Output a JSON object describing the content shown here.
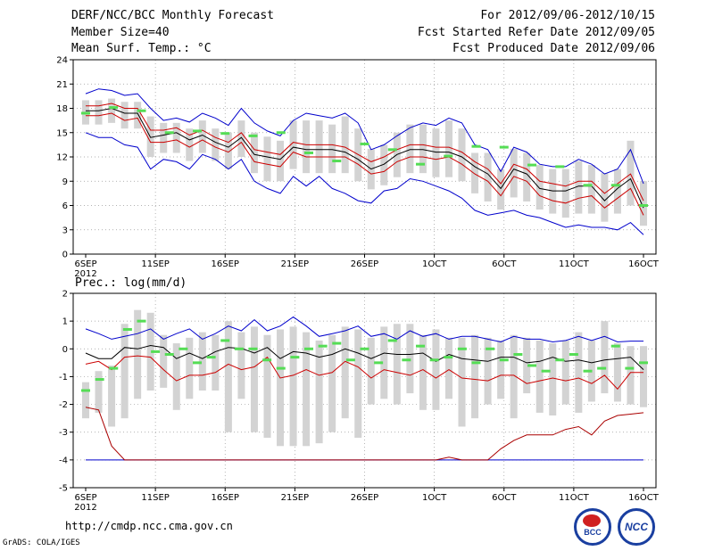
{
  "header": {
    "title": "DERF/NCC/BCC Monthly Forecast",
    "member_size": "Member Size=40",
    "variable": "Mean Surf. Temp.: °C",
    "period": "For 2012/09/06-2012/10/15",
    "started": "Fcst Started Refer Date 2012/09/05",
    "produced": "Fcst Produced Date 2012/09/06"
  },
  "footer": {
    "url": "http://cmdp.ncc.cma.gov.cn",
    "credit": "GrADS: COLA/IGES",
    "logo_left_text": "BCC",
    "logo_right_text": "NCC"
  },
  "colors": {
    "blue": "#0000cc",
    "red": "#cc0000",
    "black": "#000000",
    "green": "#55dd55",
    "box": "#d3d3d3",
    "grid": "#999999"
  },
  "chart_data": [
    {
      "type": "line",
      "title": "Mean Surf. Temp.: °C",
      "ylim": [
        0,
        24
      ],
      "yticks": [
        "0",
        "3",
        "6",
        "9",
        "12",
        "15",
        "18",
        "21",
        "24"
      ],
      "xtick_labels": [
        "6SEP",
        "11SEP",
        "16SEP",
        "21SEP",
        "26SEP",
        "1OCT",
        "6OCT",
        "11OCT",
        "16OCT"
      ],
      "year_label": "2012",
      "x_days": 40,
      "series": [
        {
          "name": "max",
          "color": "blue",
          "values": [
            19.8,
            20.4,
            20.2,
            19.6,
            19.8,
            18.0,
            16.5,
            16.8,
            16.3,
            17.4,
            16.8,
            15.9,
            18.0,
            16.2,
            15.2,
            14.6,
            16.5,
            17.4,
            17.1,
            16.8,
            17.4,
            16.2,
            12.9,
            13.5,
            14.6,
            15.6,
            16.2,
            15.9,
            16.8,
            16.2,
            13.5,
            12.9,
            10.2,
            13.2,
            12.6,
            11.1,
            10.8,
            10.8,
            11.7,
            11.1,
            9.9,
            10.5,
            12.9,
            8.7
          ]
        },
        {
          "name": "p90",
          "color": "red",
          "values": [
            18.3,
            18.3,
            18.6,
            18.0,
            18.0,
            15.3,
            15.3,
            15.6,
            14.7,
            15.3,
            14.4,
            13.8,
            15.0,
            12.9,
            12.6,
            12.3,
            13.8,
            13.5,
            13.5,
            13.5,
            13.2,
            12.3,
            11.4,
            12.0,
            12.9,
            13.5,
            13.5,
            13.2,
            13.2,
            12.6,
            11.4,
            10.5,
            8.7,
            11.1,
            10.5,
            9.0,
            8.7,
            8.4,
            9.0,
            9.0,
            7.5,
            8.7,
            9.9,
            6.6
          ]
        },
        {
          "name": "mean",
          "color": "black",
          "values": [
            17.7,
            17.7,
            18.0,
            17.4,
            17.4,
            14.4,
            14.7,
            15.0,
            14.1,
            14.7,
            13.8,
            13.2,
            14.4,
            12.3,
            12.0,
            11.7,
            13.2,
            12.9,
            12.9,
            12.9,
            12.6,
            11.7,
            10.5,
            11.1,
            12.3,
            12.9,
            12.9,
            12.6,
            12.6,
            12.0,
            10.8,
            9.9,
            8.1,
            10.5,
            9.9,
            8.1,
            7.8,
            7.8,
            8.4,
            8.4,
            6.6,
            8.1,
            9.3,
            5.7
          ]
        },
        {
          "name": "p10",
          "color": "red",
          "values": [
            17.1,
            17.1,
            17.4,
            16.5,
            16.8,
            13.8,
            13.8,
            14.1,
            13.2,
            14.1,
            13.2,
            12.6,
            13.8,
            11.4,
            11.1,
            10.8,
            12.6,
            12.0,
            12.0,
            12.0,
            12.0,
            11.1,
            9.9,
            10.2,
            11.4,
            12.0,
            12.0,
            11.7,
            12.0,
            11.1,
            9.9,
            9.0,
            7.2,
            9.6,
            9.0,
            7.2,
            6.6,
            6.3,
            6.9,
            7.2,
            5.7,
            6.9,
            8.1,
            4.8
          ]
        },
        {
          "name": "min",
          "color": "blue",
          "values": [
            15.0,
            14.4,
            14.4,
            13.5,
            13.2,
            10.5,
            11.7,
            11.4,
            10.5,
            12.3,
            11.7,
            10.5,
            11.7,
            9.0,
            8.1,
            7.5,
            9.6,
            8.4,
            9.6,
            8.1,
            7.5,
            6.6,
            6.3,
            7.8,
            8.1,
            9.3,
            9.0,
            8.4,
            7.8,
            6.9,
            5.4,
            4.8,
            5.1,
            5.4,
            4.8,
            4.5,
            3.9,
            3.3,
            3.6,
            3.3,
            3.3,
            3.0,
            3.9,
            2.4
          ]
        }
      ],
      "boxes": {
        "lo": [
          16.0,
          16.0,
          16.2,
          15.5,
          15.5,
          12.0,
          12.5,
          12.5,
          11.5,
          12.5,
          11.5,
          10.5,
          12.0,
          10.0,
          9.0,
          9.0,
          10.5,
          10.0,
          10.0,
          10.0,
          10.0,
          9.0,
          8.0,
          8.5,
          9.5,
          10.0,
          10.0,
          9.5,
          9.5,
          9.0,
          7.5,
          6.5,
          5.5,
          7.0,
          6.5,
          5.5,
          5.0,
          4.5,
          5.0,
          5.0,
          4.0,
          5.0,
          6.0,
          3.5
        ],
        "hi": [
          19.0,
          19.0,
          19.2,
          18.8,
          18.8,
          17.0,
          16.2,
          16.2,
          15.5,
          16.5,
          15.5,
          15.0,
          16.5,
          15.0,
          14.5,
          14.0,
          16.5,
          16.5,
          16.5,
          16.0,
          17.0,
          15.5,
          13.0,
          13.5,
          15.0,
          16.0,
          16.0,
          15.5,
          16.5,
          15.5,
          12.5,
          12.5,
          10.5,
          13.0,
          12.5,
          11.0,
          10.5,
          10.5,
          11.5,
          11.0,
          10.0,
          10.5,
          14.0,
          9.0
        ]
      },
      "observed_days": [
        0,
        2,
        4,
        6,
        8,
        10,
        12,
        14,
        16,
        18,
        20,
        22,
        24,
        26,
        28,
        30,
        32,
        34,
        36,
        38,
        40
      ],
      "observed_values": [
        17.4,
        18.1,
        17.7,
        15.0,
        15.2,
        14.9,
        14.6,
        15.0,
        12.5,
        11.5,
        13.6,
        12.9,
        11.1,
        12.1,
        13.3,
        13.2,
        11.0,
        10.8,
        8.5,
        8.5,
        6.0
      ]
    },
    {
      "type": "line",
      "title": "Prec.: log(mm/d)",
      "ylim": [
        -5,
        2
      ],
      "yticks": [
        "-5",
        "-4",
        "-3",
        "-2",
        "-1",
        "0",
        "1",
        "2"
      ],
      "xtick_labels": [
        "6SEP",
        "11SEP",
        "16SEP",
        "21SEP",
        "26SEP",
        "1OCT",
        "6OCT",
        "11OCT",
        "16OCT"
      ],
      "year_label": "2012",
      "x_days": 40,
      "series": [
        {
          "name": "max",
          "color": "blue",
          "values": [
            0.72,
            0.55,
            0.35,
            0.45,
            0.55,
            0.72,
            0.35,
            0.55,
            0.72,
            0.35,
            0.55,
            0.82,
            0.65,
            1.05,
            0.65,
            0.82,
            1.15,
            0.82,
            0.45,
            0.55,
            0.65,
            0.82,
            0.45,
            0.55,
            0.35,
            0.65,
            0.45,
            0.55,
            0.35,
            0.45,
            0.45,
            0.35,
            0.25,
            0.45,
            0.35,
            0.35,
            0.25,
            0.3,
            0.45,
            0.3,
            0.45,
            0.25,
            0.28,
            0.28
          ]
        },
        {
          "name": "p90",
          "color": "black",
          "values": [
            -0.15,
            -0.35,
            -0.35,
            0.05,
            0.0,
            0.12,
            0.05,
            -0.35,
            -0.15,
            -0.35,
            -0.1,
            0.05,
            0.02,
            -0.15,
            0.05,
            -0.35,
            -0.1,
            -0.15,
            -0.3,
            -0.2,
            0.0,
            -0.15,
            -0.35,
            -0.15,
            -0.2,
            -0.2,
            -0.15,
            -0.45,
            -0.2,
            -0.35,
            -0.4,
            -0.45,
            -0.3,
            -0.3,
            -0.5,
            -0.45,
            -0.3,
            -0.45,
            -0.4,
            -0.5,
            -0.4,
            -0.35,
            -0.3,
            -0.75
          ]
        },
        {
          "name": "mean",
          "color": "red",
          "values": [
            -0.55,
            -0.45,
            -0.75,
            -0.3,
            -0.25,
            -0.3,
            -0.75,
            -1.15,
            -0.95,
            -0.95,
            -0.85,
            -0.55,
            -0.75,
            -0.65,
            -0.3,
            -1.05,
            -0.95,
            -0.75,
            -0.95,
            -0.85,
            -0.45,
            -0.65,
            -1.05,
            -0.75,
            -0.85,
            -0.95,
            -0.75,
            -1.05,
            -0.75,
            -1.05,
            -1.1,
            -1.15,
            -0.95,
            -0.95,
            -1.25,
            -1.15,
            -1.05,
            -1.15,
            -1.05,
            -1.25,
            -0.95,
            -1.45,
            -0.85,
            -0.85
          ]
        },
        {
          "name": "min",
          "color": "darkred",
          "values": [
            -2.1,
            -2.2,
            -3.5,
            -4.0,
            -4.0,
            -4.0,
            -4.0,
            -4.0,
            -4.0,
            -4.0,
            -4.0,
            -4.0,
            -4.0,
            -4.0,
            -4.0,
            -4.0,
            -4.0,
            -4.0,
            -4.0,
            -4.0,
            -4.0,
            -4.0,
            -4.0,
            -4.0,
            -4.0,
            -4.0,
            -4.0,
            -4.0,
            -3.9,
            -4.0,
            -4.0,
            -4.0,
            -3.6,
            -3.3,
            -3.1,
            -3.1,
            -3.1,
            -2.9,
            -2.8,
            -3.1,
            -2.6,
            -2.4,
            -2.35,
            -2.3
          ]
        }
      ],
      "floor": -4.0,
      "boxes": {
        "lo": [
          -2.5,
          -2.3,
          -2.8,
          -2.5,
          -1.8,
          -1.5,
          -1.4,
          -2.2,
          -1.8,
          -1.5,
          -1.5,
          -3.0,
          -1.8,
          -3.0,
          -3.2,
          -3.5,
          -3.5,
          -3.5,
          -3.4,
          -3.0,
          -2.5,
          -3.2,
          -2.0,
          -1.8,
          -2.0,
          -1.6,
          -2.2,
          -2.2,
          -1.8,
          -2.8,
          -2.5,
          -2.0,
          -1.8,
          -2.5,
          -1.6,
          -2.3,
          -2.4,
          -2.0,
          -2.3,
          -1.9,
          -1.6,
          -1.9,
          -2.0,
          -2.1
        ],
        "hi": [
          -1.2,
          -0.8,
          -0.6,
          0.9,
          1.4,
          1.3,
          0.5,
          0.2,
          0.4,
          0.6,
          0.5,
          1.0,
          0.6,
          0.8,
          0.5,
          0.7,
          0.8,
          0.6,
          0.3,
          0.5,
          0.8,
          0.7,
          0.4,
          0.8,
          0.9,
          0.9,
          0.5,
          0.7,
          0.4,
          0.4,
          0.5,
          0.4,
          0.3,
          0.5,
          0.4,
          0.3,
          0.2,
          0.3,
          0.6,
          0.3,
          1.0,
          0.2,
          0.1,
          0.1
        ]
      },
      "observed_days": [
        0,
        1,
        2,
        3,
        4,
        5,
        6,
        7,
        8,
        9,
        10,
        11,
        12,
        13,
        14,
        15,
        16,
        17,
        18,
        19,
        20,
        21,
        22,
        23,
        24,
        25,
        26,
        27,
        28,
        29,
        30,
        31,
        32,
        33,
        34,
        35,
        36,
        37,
        38,
        39,
        40
      ],
      "observed_values": [
        -1.5,
        -1.1,
        -0.7,
        0.7,
        1.0,
        -0.1,
        -0.2,
        0.0,
        -0.5,
        -0.3,
        0.3,
        0.0,
        0.0,
        -0.4,
        -0.7,
        -0.3,
        0.0,
        0.1,
        0.2,
        -0.4,
        0.0,
        -0.5,
        0.3,
        -0.4,
        0.1,
        -0.4,
        -0.3,
        -0.0,
        -0.5,
        0.0,
        -0.4,
        -0.2,
        -0.6,
        -0.8,
        -0.4,
        -0.2,
        -0.8,
        -0.7,
        0.1,
        -0.7,
        -0.5
      ]
    }
  ]
}
